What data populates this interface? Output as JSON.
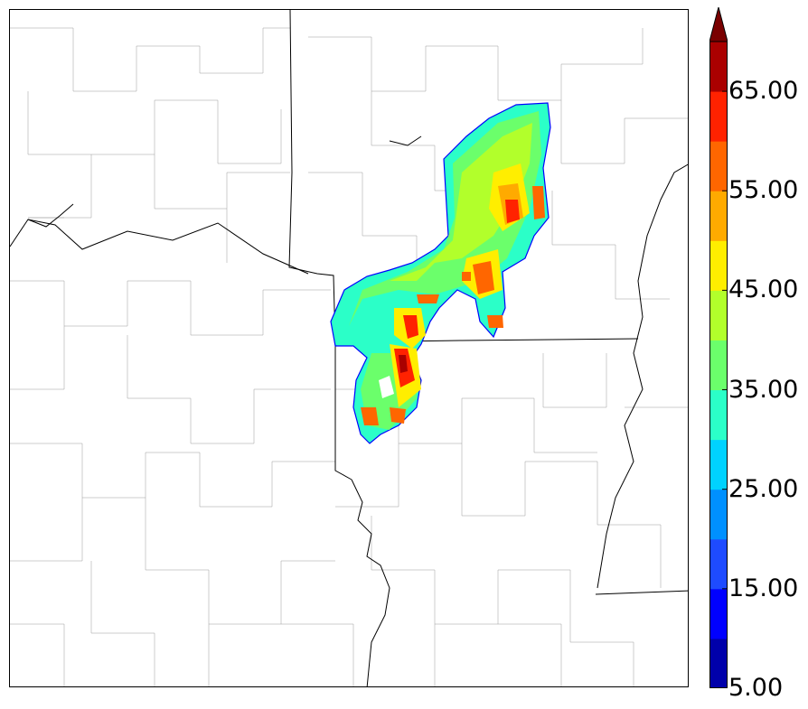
{
  "map": {
    "layers": [
      "county-borders",
      "state-borders",
      "rivers",
      "reflectivity-field"
    ]
  },
  "colorbar": {
    "levels": [
      5,
      10,
      15,
      20,
      25,
      30,
      35,
      40,
      45,
      50,
      55,
      60,
      65,
      70
    ],
    "colors": [
      "#0000aa",
      "#0000ff",
      "#1e4bff",
      "#0090ff",
      "#00d2ff",
      "#2bffc8",
      "#6bff6b",
      "#b2ff2b",
      "#ffee00",
      "#ffaa00",
      "#ff6600",
      "#ff2200",
      "#aa0000",
      "#7a0000"
    ],
    "labels": [
      "5.00",
      "15.00",
      "25.00",
      "35.00",
      "45.00",
      "55.00",
      "65.00"
    ],
    "extend": "max"
  }
}
